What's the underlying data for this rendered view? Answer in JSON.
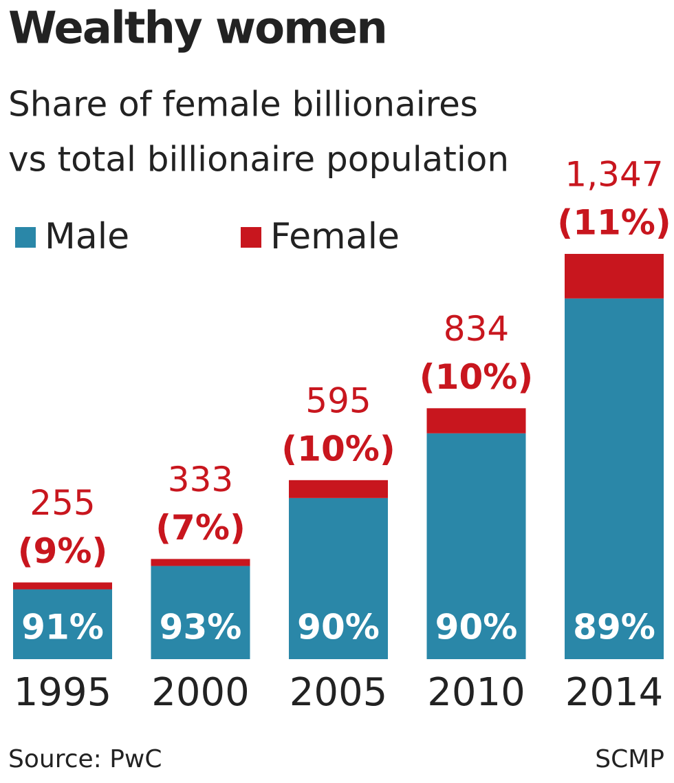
{
  "chart_data": {
    "type": "stacked-bar",
    "title": "Wealthy women",
    "subtitle": [
      "Share of female billionaires",
      "vs total billionaire population"
    ],
    "categories": [
      "1995",
      "2000",
      "2005",
      "2010",
      "2014"
    ],
    "totals": {
      "values": [
        255,
        333,
        595,
        834,
        1347
      ],
      "value_labels": [
        "255",
        "333",
        "595",
        "834",
        "1,347"
      ]
    },
    "series": [
      {
        "name": "Male",
        "color": "#2a87a8",
        "values": [
          91,
          93,
          90,
          90,
          89
        ],
        "value_labels": [
          "91%",
          "93%",
          "90%",
          "90%",
          "89%"
        ]
      },
      {
        "name": "Female",
        "color": "#c8161e",
        "values": [
          9,
          7,
          10,
          10,
          11
        ],
        "value_labels": [
          "(9%)",
          "(7%)",
          "(10%)",
          "(10%)",
          "(11%)"
        ]
      }
    ]
  },
  "source": "Source: PwC",
  "credit": "SCMP"
}
